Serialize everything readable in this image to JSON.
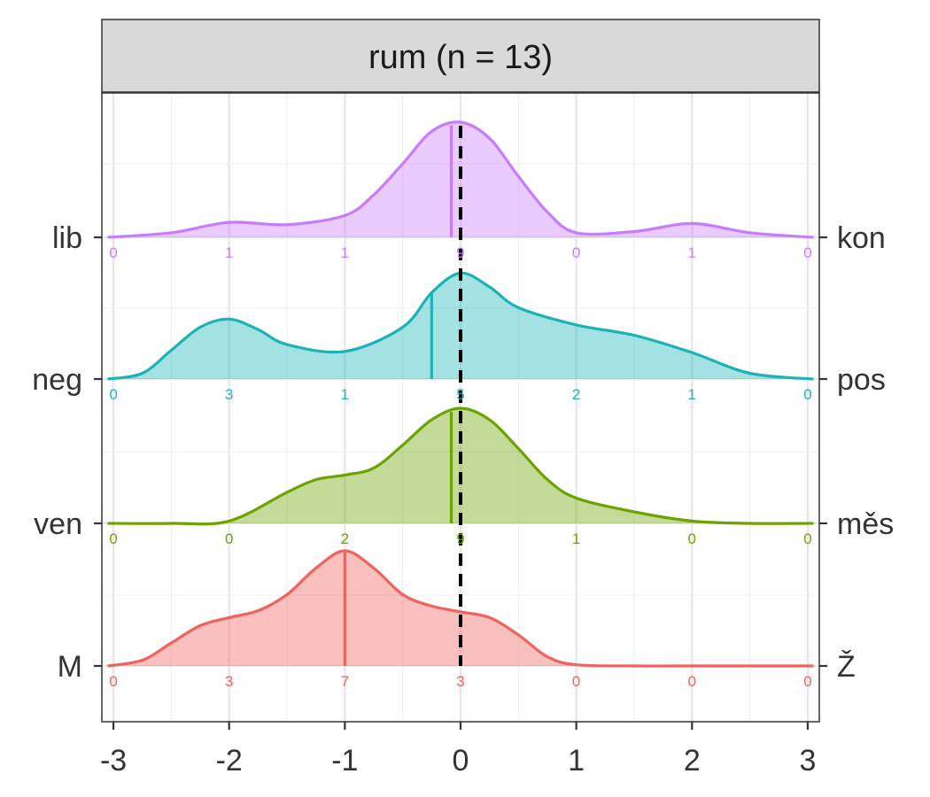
{
  "chart_data": {
    "type": "density_ridgeline",
    "facet_title": "rum (n = 13)",
    "x_ticks": [
      -3,
      -2,
      -1,
      0,
      1,
      2,
      3
    ],
    "xlim": [
      -3.1,
      3.1
    ],
    "reference_line_x": 0,
    "grid": true,
    "count_positions": [
      -3,
      -2,
      -1,
      0,
      1,
      2,
      3
    ],
    "rows": [
      {
        "left_label": "lib",
        "right_label": "kon",
        "color": "#C77CFF",
        "counts": [
          0,
          1,
          1,
          9,
          0,
          1,
          0
        ],
        "mean": -0.08,
        "density_x": [
          -3.05,
          -2.5,
          -2,
          -1.5,
          -1,
          -0.75,
          -0.5,
          -0.25,
          0,
          0.25,
          0.5,
          0.75,
          1,
          1.5,
          2,
          2.5,
          3.05
        ],
        "density_y": [
          0.0,
          0.04,
          0.13,
          0.11,
          0.19,
          0.37,
          0.64,
          0.92,
          1.0,
          0.86,
          0.53,
          0.22,
          0.04,
          0.05,
          0.12,
          0.04,
          0.0
        ]
      },
      {
        "left_label": "neg",
        "right_label": "pos",
        "color": "#1CB3B6",
        "counts": [
          0,
          3,
          1,
          5,
          2,
          1,
          0
        ],
        "mean": -0.25,
        "density_x": [
          -3.05,
          -2.75,
          -2.5,
          -2.25,
          -2,
          -1.75,
          -1.5,
          -1,
          -0.5,
          -0.25,
          0,
          0.25,
          0.5,
          1,
          1.5,
          2,
          2.5,
          3.05
        ],
        "density_y": [
          0.0,
          0.05,
          0.25,
          0.45,
          0.52,
          0.43,
          0.3,
          0.24,
          0.45,
          0.75,
          0.92,
          0.8,
          0.62,
          0.47,
          0.38,
          0.23,
          0.05,
          0.0
        ]
      },
      {
        "left_label": "ven",
        "right_label": "měs",
        "color": "#6CA300",
        "counts": [
          0,
          0,
          2,
          9,
          1,
          0,
          0
        ],
        "mean": -0.08,
        "density_x": [
          -3.05,
          -2.5,
          -2,
          -1.5,
          -1.25,
          -1,
          -0.75,
          -0.5,
          -0.25,
          0,
          0.25,
          0.5,
          0.75,
          1,
          1.5,
          2,
          2.5,
          3.05
        ],
        "density_y": [
          0.0,
          0.0,
          0.02,
          0.27,
          0.38,
          0.42,
          0.48,
          0.68,
          0.9,
          1.0,
          0.9,
          0.65,
          0.38,
          0.22,
          0.1,
          0.02,
          0.0,
          0.0
        ]
      },
      {
        "left_label": "M",
        "right_label": "Ž",
        "color": "#F0625D",
        "counts": [
          0,
          3,
          7,
          3,
          0,
          0,
          0
        ],
        "mean": -1,
        "density_x": [
          -3.05,
          -2.75,
          -2.5,
          -2.25,
          -2,
          -1.75,
          -1.5,
          -1.25,
          -1,
          -0.75,
          -0.5,
          -0.25,
          0,
          0.25,
          0.5,
          0.75,
          1,
          1.5,
          2,
          3.05
        ],
        "density_y": [
          0.0,
          0.05,
          0.2,
          0.35,
          0.42,
          0.48,
          0.62,
          0.85,
          1.0,
          0.85,
          0.62,
          0.52,
          0.47,
          0.42,
          0.27,
          0.08,
          0.01,
          0.0,
          0.0,
          0.0
        ]
      }
    ]
  }
}
